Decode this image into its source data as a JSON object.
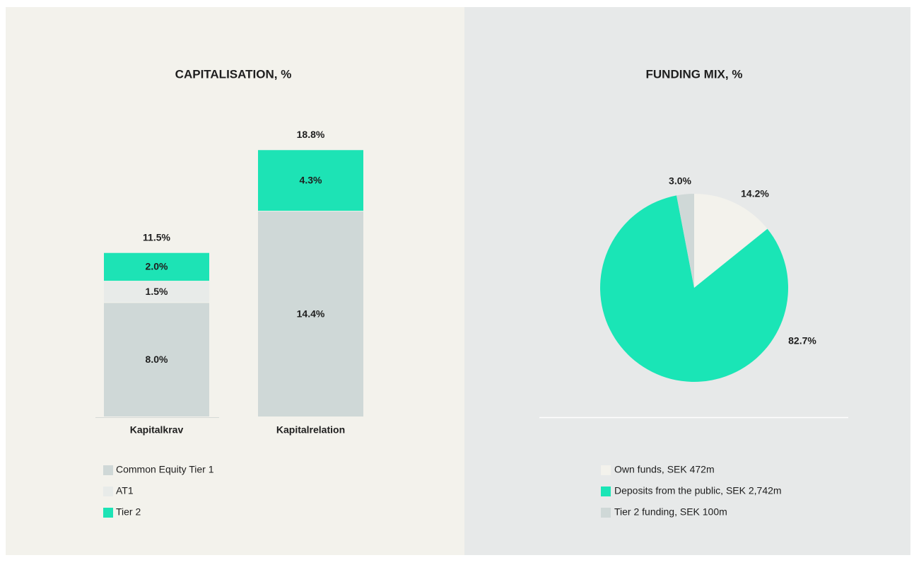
{
  "chart_data": [
    {
      "type": "bar",
      "title": "CAPITALISATION, %",
      "categories": [
        "Kapitalkrav",
        "Kapitalrelation"
      ],
      "series": [
        {
          "name": "Common Equity Tier 1",
          "color": "#cfd8d7",
          "values": [
            8.0,
            14.4
          ],
          "value_labels": [
            "8.0%",
            "14.4%"
          ]
        },
        {
          "name": "AT1",
          "color": "#e8ebe9",
          "values": [
            1.5,
            null
          ],
          "value_labels": [
            "1.5%",
            null
          ]
        },
        {
          "name": "Tier 2",
          "color": "#1de3b5",
          "values": [
            2.0,
            4.3
          ],
          "value_labels": [
            "2.0%",
            "4.3%"
          ]
        }
      ],
      "totals": [
        11.5,
        18.8
      ],
      "total_labels": [
        "11.5%",
        "18.8%"
      ]
    },
    {
      "type": "pie",
      "title": "FUNDING MIX, %",
      "categories": [
        "Own funds, SEK 472m",
        "Deposits from the public, SEK 2,742m",
        "Tier 2 funding, SEK 100m"
      ],
      "values": [
        14.2,
        82.7,
        3.0
      ],
      "value_labels": [
        "14.2%",
        "82.7%",
        "3.0%"
      ],
      "colors": [
        "#f3f2ec",
        "#1ae5b6",
        "#cfd8d7"
      ]
    }
  ]
}
